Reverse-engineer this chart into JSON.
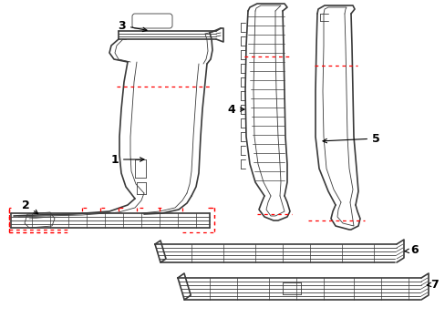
{
  "bg_color": "#ffffff",
  "line_color": "#3a3a3a",
  "red_dash_color": "#ff0000",
  "label_color": "#000000",
  "figsize": [
    4.89,
    3.6
  ],
  "dpi": 100
}
